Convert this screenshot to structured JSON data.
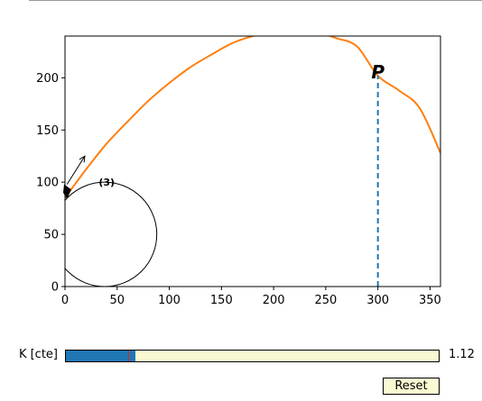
{
  "slider": {
    "label": "K [cte]",
    "value_text": "1.12",
    "value": 1.12,
    "min": 0,
    "max": 6,
    "initial": 1.0
  },
  "reset_label": "Reset",
  "annotations": {
    "point_label": "P",
    "circle_label": "(3)"
  },
  "chart_data": {
    "type": "line",
    "xlim": [
      0,
      360
    ],
    "ylim": [
      0,
      240
    ],
    "x_ticks": [
      0,
      50,
      100,
      150,
      200,
      250,
      300,
      350
    ],
    "y_ticks": [
      0,
      50,
      100,
      150,
      200
    ],
    "series": [
      {
        "color": "#ff7f0e",
        "x": [
          0,
          20,
          40,
          60,
          80,
          100,
          120,
          140,
          160,
          180,
          200,
          220,
          240,
          260,
          280,
          300,
          320,
          340,
          360
        ],
        "y": [
          85,
          112,
          137,
          158,
          178,
          195,
          210,
          222,
          233,
          240,
          244,
          245,
          244,
          238,
          230,
          202,
          188,
          171,
          128
        ]
      }
    ],
    "vertical_line": {
      "x": 300,
      "y": 202,
      "color": "#1f77b4",
      "style": "dashed"
    },
    "point_P": {
      "x": 300,
      "y": 202
    },
    "circle": {
      "cx": 38,
      "cy": 50,
      "r": 50
    },
    "arrow": {
      "from": [
        2,
        98
      ],
      "to": [
        19,
        125
      ]
    },
    "grid": false
  }
}
